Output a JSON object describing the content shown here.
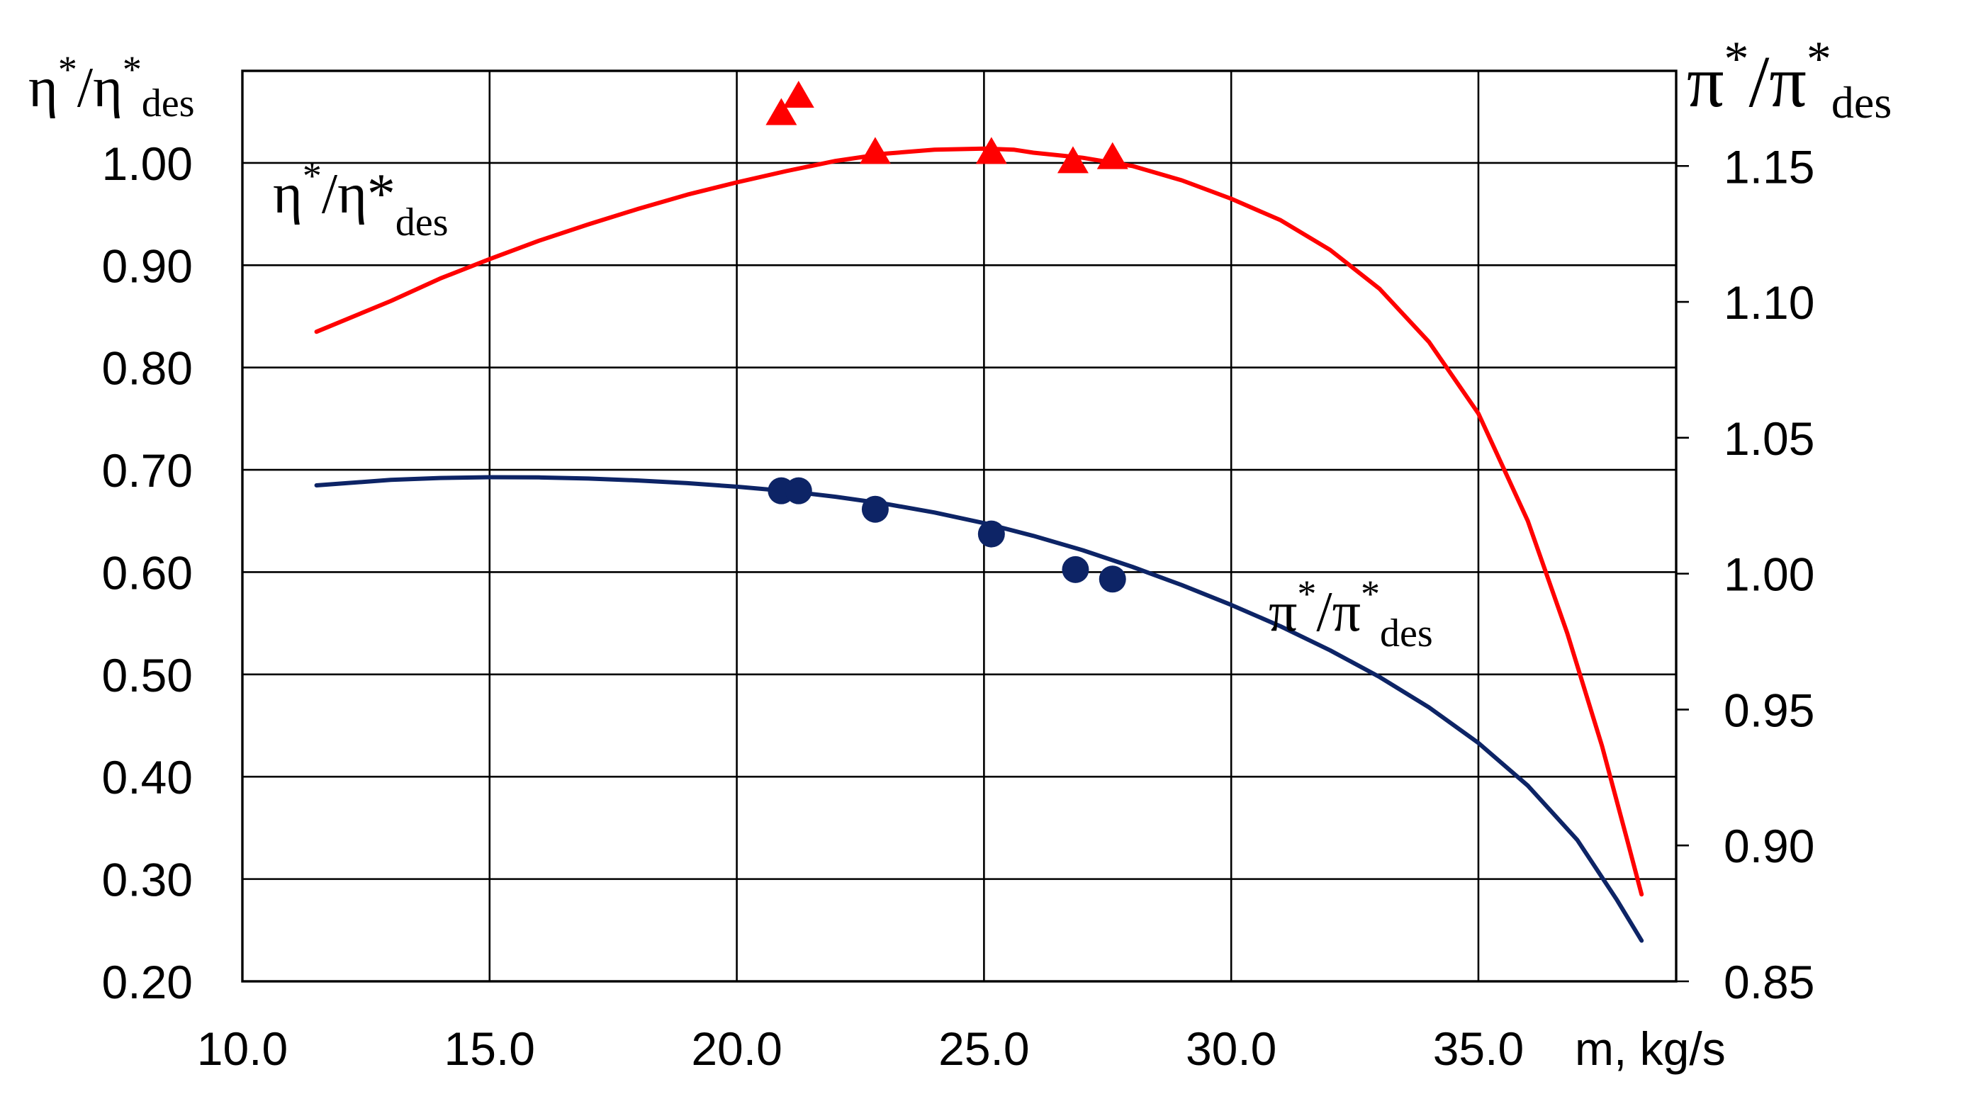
{
  "chart_data": {
    "type": "line",
    "title": "",
    "x_axis": {
      "label": "m, kg/s",
      "range": [
        10.0,
        39.0
      ],
      "ticks": [
        10.0,
        15.0,
        20.0,
        25.0,
        30.0,
        35.0
      ],
      "tick_labels": [
        "10.0",
        "15.0",
        "20.0",
        "25.0",
        "30.0",
        "35.0"
      ]
    },
    "y_left": {
      "label_main": "η",
      "label_sup": "*",
      "label_slash": "/η",
      "label_sup2": "*",
      "label_sub": "des",
      "range": [
        0.2,
        1.09
      ],
      "ticks": [
        0.2,
        0.3,
        0.4,
        0.5,
        0.6,
        0.7,
        0.8,
        0.9,
        1.0
      ],
      "tick_labels": [
        "0.20",
        "0.30",
        "0.40",
        "0.50",
        "0.60",
        "0.70",
        "0.80",
        "0.90",
        "1.00"
      ]
    },
    "y_right": {
      "label_main": "π",
      "label_sup": "*",
      "label_slash": "/π",
      "label_sup2": "*",
      "label_sub": "des",
      "range": [
        0.85,
        1.185
      ],
      "ticks": [
        0.85,
        0.9,
        0.95,
        1.0,
        1.05,
        1.1,
        1.15
      ],
      "tick_labels": [
        "0.85",
        "0.90",
        "0.95",
        "1.00",
        "1.05",
        "1.10",
        "1.15"
      ]
    },
    "series": [
      {
        "name": "η*/η*des",
        "axis": "left",
        "color": "#ff0000",
        "label_main": "η",
        "label_sup": "*",
        "label_slash": "/η*",
        "label_sub": "des",
        "curve": {
          "x": [
            11.5,
            13.0,
            14.0,
            15.0,
            16.0,
            17.0,
            18.0,
            19.0,
            20.0,
            21.0,
            22.0,
            23.0,
            24.0,
            25.0,
            25.6,
            26.0,
            27.0,
            28.0,
            29.0,
            30.0,
            31.0,
            32.0,
            33.0,
            34.0,
            35.0,
            36.0,
            36.8,
            37.5,
            38.0,
            38.3
          ],
          "y": [
            0.835,
            0.865,
            0.887,
            0.906,
            0.924,
            0.94,
            0.955,
            0.969,
            0.981,
            0.992,
            1.002,
            1.009,
            1.013,
            1.014,
            1.013,
            1.01,
            1.005,
            0.997,
            0.983,
            0.965,
            0.944,
            0.915,
            0.877,
            0.825,
            0.755,
            0.65,
            0.54,
            0.43,
            0.34,
            0.285
          ]
        },
        "markers": {
          "shape": "triangle",
          "x": [
            20.9,
            21.25,
            22.8,
            25.15,
            26.8,
            27.6
          ],
          "y": [
            1.047,
            1.064,
            1.009,
            1.009,
            1.0,
            1.004
          ]
        }
      },
      {
        "name": "π*/π*des",
        "axis": "right",
        "color": "#0d2466",
        "label_main": "π",
        "label_sup": "*",
        "label_slash": "/π",
        "label_sup2": "*",
        "label_sub": "des",
        "curve": {
          "x": [
            11.5,
            13.0,
            14.0,
            15.0,
            16.0,
            17.0,
            18.0,
            19.0,
            20.0,
            21.0,
            22.0,
            23.0,
            24.0,
            25.0,
            26.0,
            27.0,
            28.0,
            29.0,
            30.0,
            31.0,
            32.0,
            33.0,
            34.0,
            35.0,
            36.0,
            37.0,
            37.8,
            38.3
          ],
          "y": [
            1.0325,
            1.0345,
            1.0352,
            1.0355,
            1.0354,
            1.035,
            1.0343,
            1.0333,
            1.032,
            1.0304,
            1.0283,
            1.0257,
            1.0225,
            1.0186,
            1.0139,
            1.0086,
            1.0025,
            0.9958,
            0.9885,
            0.9806,
            0.9718,
            0.962,
            0.9508,
            0.9377,
            0.922,
            0.902,
            0.88,
            0.865
          ]
        },
        "markers": {
          "shape": "circle",
          "x": [
            20.9,
            21.25,
            22.8,
            25.15,
            26.85,
            27.6
          ],
          "y": [
            1.0305,
            1.0305,
            1.0237,
            1.0146,
            1.0015,
            0.998
          ]
        }
      }
    ]
  }
}
